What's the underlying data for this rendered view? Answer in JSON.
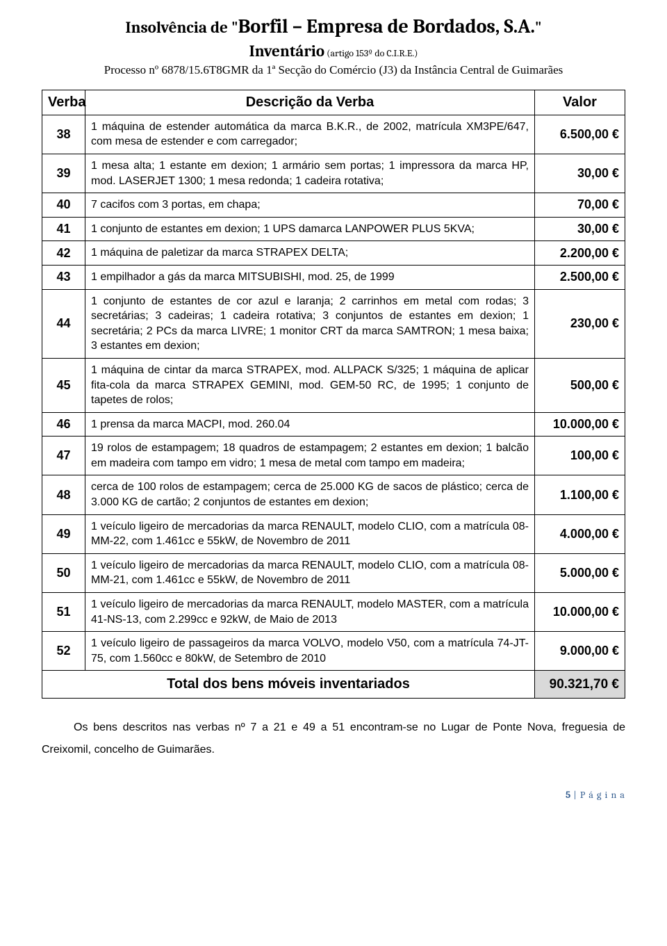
{
  "header": {
    "prefix": "Insolvência de \"",
    "company": "Borfil – Empresa de Bordados, S.A.",
    "suffix": "\"",
    "line2_main": "Inventário",
    "line2_small": " (artigo 153º do C.I.R.E.)",
    "process": "Processo nº 6878/15.6T8GMR da 1ª Secção do Comércio (J3) da Instância Central de Guimarães"
  },
  "columns": {
    "verba": "Verba",
    "descricao": "Descrição da Verba",
    "valor": "Valor"
  },
  "rows": [
    {
      "n": "38",
      "desc": "1 máquina de estender automática da marca B.K.R., de 2002, matrícula XM3PE/647, com mesa de estender e com carregador;",
      "valor": "6.500,00 €"
    },
    {
      "n": "39",
      "desc": "1 mesa alta; 1 estante em dexion; 1 armário sem portas; 1 impressora da marca HP, mod. LASERJET 1300; 1 mesa redonda; 1 cadeira rotativa;",
      "valor": "30,00 €"
    },
    {
      "n": "40",
      "desc": "7 cacifos com 3 portas, em chapa;",
      "valor": "70,00 €"
    },
    {
      "n": "41",
      "desc": "1 conjunto de estantes em dexion; 1 UPS damarca LANPOWER PLUS 5KVA;",
      "valor": "30,00 €"
    },
    {
      "n": "42",
      "desc": "1 máquina de paletizar da marca STRAPEX DELTA;",
      "valor": "2.200,00 €"
    },
    {
      "n": "43",
      "desc": "1 empilhador a gás da marca MITSUBISHI, mod. 25, de 1999",
      "valor": "2.500,00 €"
    },
    {
      "n": "44",
      "desc": "1 conjunto de estantes de cor azul e laranja; 2 carrinhos em metal com rodas; 3 secretárias; 3 cadeiras; 1 cadeira rotativa; 3 conjuntos de estantes em dexion; 1 secretária; 2 PCs da marca LIVRE; 1 monitor CRT da marca SAMTRON; 1 mesa baixa; 3 estantes em dexion;",
      "valor": "230,00 €"
    },
    {
      "n": "45",
      "desc": "1 máquina de cintar da marca STRAPEX, mod. ALLPACK S/325; 1 máquina de aplicar fita-cola da marca STRAPEX GEMINI, mod. GEM-50 RC, de 1995; 1 conjunto de tapetes de rolos;",
      "valor": "500,00 €"
    },
    {
      "n": "46",
      "desc": "1 prensa da marca MACPI, mod. 260.04",
      "valor": "10.000,00 €"
    },
    {
      "n": "47",
      "desc": "19 rolos de estampagem; 18 quadros de estampagem; 2 estantes em dexion; 1 balcão em madeira com tampo em vidro; 1 mesa de metal com tampo em madeira;",
      "valor": "100,00 €"
    },
    {
      "n": "48",
      "desc": "cerca de 100 rolos de estampagem; cerca de 25.000 KG de sacos de plástico; cerca de 3.000 KG de cartão; 2 conjuntos de estantes em dexion;",
      "valor": "1.100,00 €"
    },
    {
      "n": "49",
      "desc": "1 veículo ligeiro de mercadorias da marca RENAULT, modelo CLIO, com a matrícula 08-MM-22, com 1.461cc e 55kW, de Novembro de 2011",
      "valor": "4.000,00 €"
    },
    {
      "n": "50",
      "desc": "1 veículo ligeiro de mercadorias da marca RENAULT, modelo CLIO, com a matrícula 08-MM-21, com 1.461cc e 55kW, de Novembro de 2011",
      "valor": "5.000,00 €"
    },
    {
      "n": "51",
      "desc": "1 veículo ligeiro de mercadorias da marca RENAULT, modelo MASTER, com a matrícula 41-NS-13, com 2.299cc e 92kW, de Maio de 2013",
      "valor": "10.000,00 €"
    },
    {
      "n": "52",
      "desc": "1 veículo ligeiro de passageiros da marca VOLVO, modelo V50, com a matrícula 74-JT-75, com 1.560cc e 80kW, de Setembro de 2010",
      "valor": "9.000,00 €"
    }
  ],
  "total": {
    "label": "Total dos bens móveis inventariados",
    "valor": "90.321,70 €"
  },
  "footnote": "Os bens descritos nas verbas nº 7 a 21 e 49 a 51 encontram-se no Lugar de Ponte Nova, freguesia de Creixomil, concelho de Guimarães.",
  "pagenum": {
    "n": "5",
    "rest": " | P á g i n a"
  }
}
